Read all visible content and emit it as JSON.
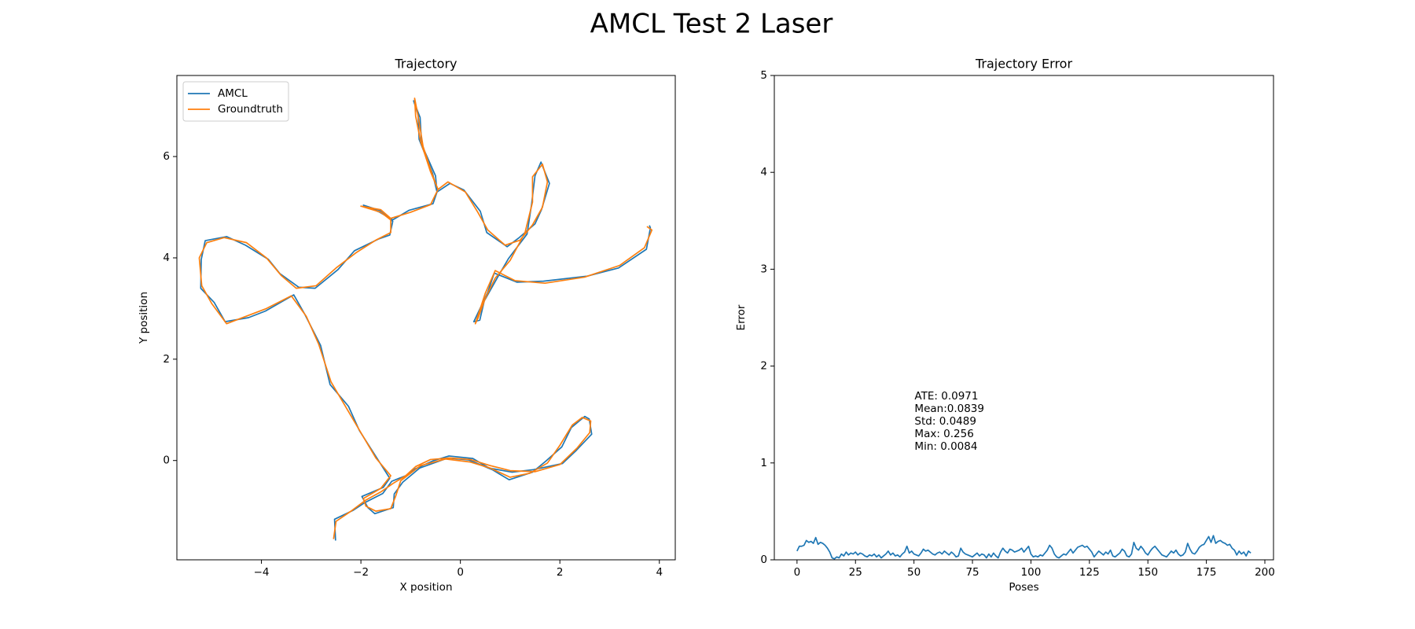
{
  "title": "AMCL Test 2 Laser",
  "chart_data": [
    {
      "type": "line",
      "title": "Trajectory",
      "xlabel": "X position",
      "ylabel": "Y position",
      "xlim": [
        -5.7,
        4.32
      ],
      "ylim": [
        -1.96,
        7.6
      ],
      "xticks": [
        {
          "value": -4,
          "label": "−4"
        },
        {
          "value": -2,
          "label": "−2"
        },
        0,
        2,
        4
      ],
      "yticks": [
        0,
        2,
        4,
        6
      ],
      "legend": "upper left",
      "series": [
        {
          "name": "AMCL",
          "color": "#1f77b4",
          "x": [
            -2.51,
            -2.53,
            -2.15,
            -1.92,
            -1.56,
            -1.38,
            -1.05,
            -0.92,
            -0.56,
            -0.23,
            0.25,
            0.58,
            1.04,
            1.47,
            2.05,
            2.33,
            2.64,
            2.59,
            2.5,
            2.23,
            2.04,
            1.72,
            1.45,
            0.98,
            0.64,
            0.17,
            -0.25,
            -0.82,
            -1.16,
            -1.33,
            -1.35,
            -1.72,
            -1.86,
            -1.98,
            -1.55,
            -1.42,
            -1.66,
            -2.03,
            -2.25,
            -2.62,
            -2.81,
            -3.13,
            -3.35,
            -3.92,
            -4.26,
            -4.73,
            -4.95,
            -5.22,
            -5.21,
            -5.13,
            -4.7,
            -4.32,
            -3.86,
            -3.63,
            -3.25,
            -2.92,
            -2.46,
            -2.13,
            -1.65,
            -1.42,
            -1.36,
            -1.63,
            -1.95,
            -1.62,
            -1.36,
            -1.03,
            -0.55,
            -0.47,
            -0.56,
            -0.83,
            -0.85,
            -0.94,
            -0.81,
            -0.78,
            -0.5,
            -0.47,
            -0.21,
            0.07,
            0.4,
            0.53,
            0.94,
            1.17,
            1.5,
            1.63,
            1.79,
            1.62,
            1.5,
            1.43,
            1.34,
            0.97,
            0.75,
            0.48,
            0.39,
            0.27,
            0.55,
            0.68,
            1.14,
            1.67,
            2.55,
            3.18,
            3.74,
            3.82,
            3.8
          ],
          "values": [
            -1.58,
            -1.16,
            -0.98,
            -0.83,
            -0.65,
            -0.41,
            -0.28,
            -0.17,
            -0.01,
            0.09,
            0.04,
            -0.15,
            -0.23,
            -0.18,
            -0.06,
            0.2,
            0.52,
            0.82,
            0.87,
            0.65,
            0.27,
            -0.01,
            -0.23,
            -0.38,
            -0.18,
            0.01,
            0.05,
            -0.15,
            -0.43,
            -0.66,
            -0.93,
            -1.05,
            -0.93,
            -0.71,
            -0.53,
            -0.35,
            0.02,
            0.59,
            1.07,
            1.5,
            2.27,
            2.89,
            3.27,
            2.95,
            2.82,
            2.74,
            3.12,
            3.4,
            3.97,
            4.34,
            4.42,
            4.25,
            3.97,
            3.69,
            3.42,
            3.4,
            3.77,
            4.14,
            4.37,
            4.45,
            4.72,
            4.94,
            5.04,
            4.9,
            4.75,
            4.94,
            5.07,
            5.3,
            5.67,
            6.34,
            6.82,
            7.1,
            6.77,
            6.24,
            5.62,
            5.3,
            5.47,
            5.34,
            4.92,
            4.5,
            4.22,
            4.39,
            4.67,
            4.95,
            5.47,
            5.89,
            5.62,
            5.05,
            4.47,
            3.99,
            3.62,
            3.15,
            2.77,
            2.74,
            3.32,
            3.7,
            3.52,
            3.54,
            3.64,
            3.8,
            4.17,
            4.59,
            4.64
          ]
        },
        {
          "name": "Groundtruth",
          "color": "#ff7f0e",
          "x": [
            -2.55,
            -2.5,
            -2.2,
            -1.9,
            -1.6,
            -1.35,
            -1.1,
            -0.9,
            -0.6,
            -0.2,
            0.2,
            0.6,
            1.0,
            1.5,
            2.0,
            2.35,
            2.6,
            2.62,
            2.45,
            2.25,
            2.0,
            1.75,
            1.4,
            1.0,
            0.6,
            0.2,
            -0.3,
            -0.8,
            -1.2,
            -1.3,
            -1.4,
            -1.7,
            -1.9,
            -1.95,
            -1.6,
            -1.4,
            -1.7,
            -2.0,
            -2.3,
            -2.6,
            -2.85,
            -3.1,
            -3.4,
            -3.9,
            -4.3,
            -4.7,
            -5.0,
            -5.2,
            -5.25,
            -5.1,
            -4.75,
            -4.3,
            -3.9,
            -3.6,
            -3.3,
            -2.9,
            -2.5,
            -2.1,
            -1.7,
            -1.4,
            -1.4,
            -1.6,
            -2.0,
            -1.6,
            -1.4,
            -1.0,
            -0.6,
            -0.45,
            -0.6,
            -0.8,
            -0.9,
            -0.92,
            -0.85,
            -0.75,
            -0.55,
            -0.45,
            -0.25,
            0.1,
            0.35,
            0.55,
            0.9,
            1.2,
            1.45,
            1.65,
            1.75,
            1.65,
            1.45,
            1.45,
            1.3,
            1.0,
            0.7,
            0.5,
            0.35,
            0.3,
            0.5,
            0.7,
            1.1,
            1.7,
            2.5,
            3.2,
            3.7,
            3.85,
            3.75
          ],
          "values": [
            -1.55,
            -1.2,
            -1.0,
            -0.78,
            -0.62,
            -0.45,
            -0.3,
            -0.12,
            0.02,
            0.05,
            0.02,
            -0.1,
            -0.2,
            -0.22,
            -0.08,
            0.25,
            0.55,
            0.78,
            0.85,
            0.7,
            0.3,
            -0.05,
            -0.25,
            -0.33,
            -0.15,
            -0.03,
            0.03,
            -0.1,
            -0.4,
            -0.7,
            -0.95,
            -1.0,
            -0.9,
            -0.75,
            -0.55,
            -0.3,
            0.05,
            0.55,
            1.05,
            1.55,
            2.3,
            2.85,
            3.25,
            3.0,
            2.85,
            2.7,
            3.1,
            3.45,
            4.0,
            4.3,
            4.4,
            4.3,
            4.0,
            3.65,
            3.4,
            3.45,
            3.8,
            4.1,
            4.35,
            4.5,
            4.75,
            4.9,
            5.02,
            4.95,
            4.78,
            4.9,
            5.05,
            5.35,
            5.7,
            6.3,
            6.8,
            7.15,
            6.8,
            6.2,
            5.6,
            5.35,
            5.5,
            5.3,
            4.9,
            4.55,
            4.25,
            4.35,
            4.65,
            5.0,
            5.5,
            5.85,
            5.6,
            5.1,
            4.5,
            3.95,
            3.6,
            3.2,
            2.8,
            2.7,
            3.3,
            3.75,
            3.55,
            3.5,
            3.62,
            3.85,
            4.2,
            4.55,
            4.62
          ]
        }
      ]
    },
    {
      "type": "line",
      "title": "Trajectory Error",
      "xlabel": "Poses",
      "ylabel": "Error",
      "xlim": [
        -9.7,
        203.7
      ],
      "ylim": [
        0,
        5
      ],
      "xticks": [
        0,
        25,
        50,
        75,
        100,
        125,
        150,
        175,
        200
      ],
      "yticks": [
        0,
        1,
        2,
        3,
        4,
        5
      ],
      "annotations": [
        "ATE: 0.0971",
        "Mean:0.0839",
        "Std: 0.0489",
        "Max: 0.256",
        "Min: 0.0084"
      ],
      "series": [
        {
          "color": "#1f77b4",
          "values": [
            0.09,
            0.14,
            0.14,
            0.15,
            0.2,
            0.18,
            0.19,
            0.17,
            0.23,
            0.16,
            0.18,
            0.17,
            0.15,
            0.12,
            0.08,
            0.02,
            0.01,
            0.03,
            0.02,
            0.06,
            0.04,
            0.08,
            0.05,
            0.07,
            0.06,
            0.08,
            0.05,
            0.07,
            0.06,
            0.04,
            0.03,
            0.05,
            0.04,
            0.06,
            0.03,
            0.05,
            0.02,
            0.04,
            0.06,
            0.09,
            0.05,
            0.07,
            0.04,
            0.05,
            0.03,
            0.06,
            0.08,
            0.14,
            0.07,
            0.09,
            0.06,
            0.05,
            0.04,
            0.07,
            0.11,
            0.09,
            0.1,
            0.08,
            0.06,
            0.05,
            0.07,
            0.08,
            0.06,
            0.09,
            0.07,
            0.05,
            0.08,
            0.06,
            0.03,
            0.04,
            0.12,
            0.08,
            0.06,
            0.05,
            0.04,
            0.03,
            0.05,
            0.07,
            0.04,
            0.06,
            0.05,
            0.02,
            0.06,
            0.03,
            0.07,
            0.04,
            0.02,
            0.08,
            0.12,
            0.09,
            0.07,
            0.11,
            0.1,
            0.08,
            0.09,
            0.1,
            0.12,
            0.08,
            0.11,
            0.14,
            0.06,
            0.03,
            0.04,
            0.03,
            0.05,
            0.04,
            0.07,
            0.1,
            0.15,
            0.12,
            0.06,
            0.03,
            0.02,
            0.04,
            0.06,
            0.05,
            0.08,
            0.11,
            0.07,
            0.1,
            0.13,
            0.14,
            0.15,
            0.13,
            0.14,
            0.11,
            0.08,
            0.03,
            0.06,
            0.09,
            0.07,
            0.05,
            0.08,
            0.06,
            0.1,
            0.04,
            0.03,
            0.05,
            0.07,
            0.11,
            0.09,
            0.04,
            0.03,
            0.06,
            0.18,
            0.12,
            0.1,
            0.14,
            0.11,
            0.07,
            0.05,
            0.09,
            0.12,
            0.14,
            0.11,
            0.08,
            0.05,
            0.04,
            0.03,
            0.06,
            0.09,
            0.07,
            0.1,
            0.06,
            0.04,
            0.05,
            0.08,
            0.17,
            0.11,
            0.07,
            0.06,
            0.09,
            0.13,
            0.15,
            0.16,
            0.2,
            0.24,
            0.18,
            0.25,
            0.17,
            0.19,
            0.2,
            0.18,
            0.17,
            0.15,
            0.16,
            0.12,
            0.1,
            0.05,
            0.09,
            0.06,
            0.08,
            0.04,
            0.09,
            0.07
          ]
        }
      ]
    }
  ]
}
